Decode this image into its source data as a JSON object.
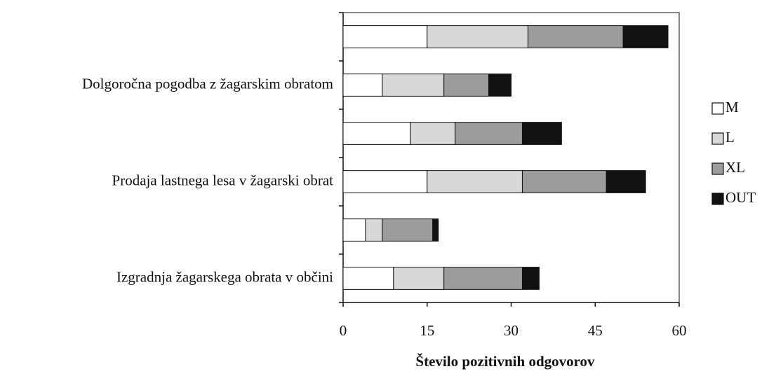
{
  "chart_data": {
    "type": "stacked_bar_horizontal",
    "x_label": "Število pozitivnih odgovorov",
    "categories": [
      null,
      "Dolgoročna pogodba z žagarskim obratom",
      null,
      "Prodaja lastnega lesa v žagarski obrat",
      null,
      "Izgradnja žagarskega obrata v občini"
    ],
    "series": [
      {
        "name": "M",
        "color": "#ffffff",
        "values": [
          15,
          7,
          12,
          15,
          4,
          9
        ]
      },
      {
        "name": "L",
        "color": "#d8d8d8",
        "values": [
          18,
          11,
          8,
          17,
          3,
          9
        ]
      },
      {
        "name": "XL",
        "color": "#9c9c9c",
        "values": [
          17,
          8,
          12,
          15,
          9,
          14
        ]
      },
      {
        "name": "OUT",
        "color": "#111111",
        "values": [
          8,
          4,
          7,
          7,
          1,
          3
        ]
      }
    ],
    "xlim": [
      0,
      60
    ],
    "xticks": [
      0,
      15,
      30,
      45,
      60
    ],
    "legend": "right"
  }
}
